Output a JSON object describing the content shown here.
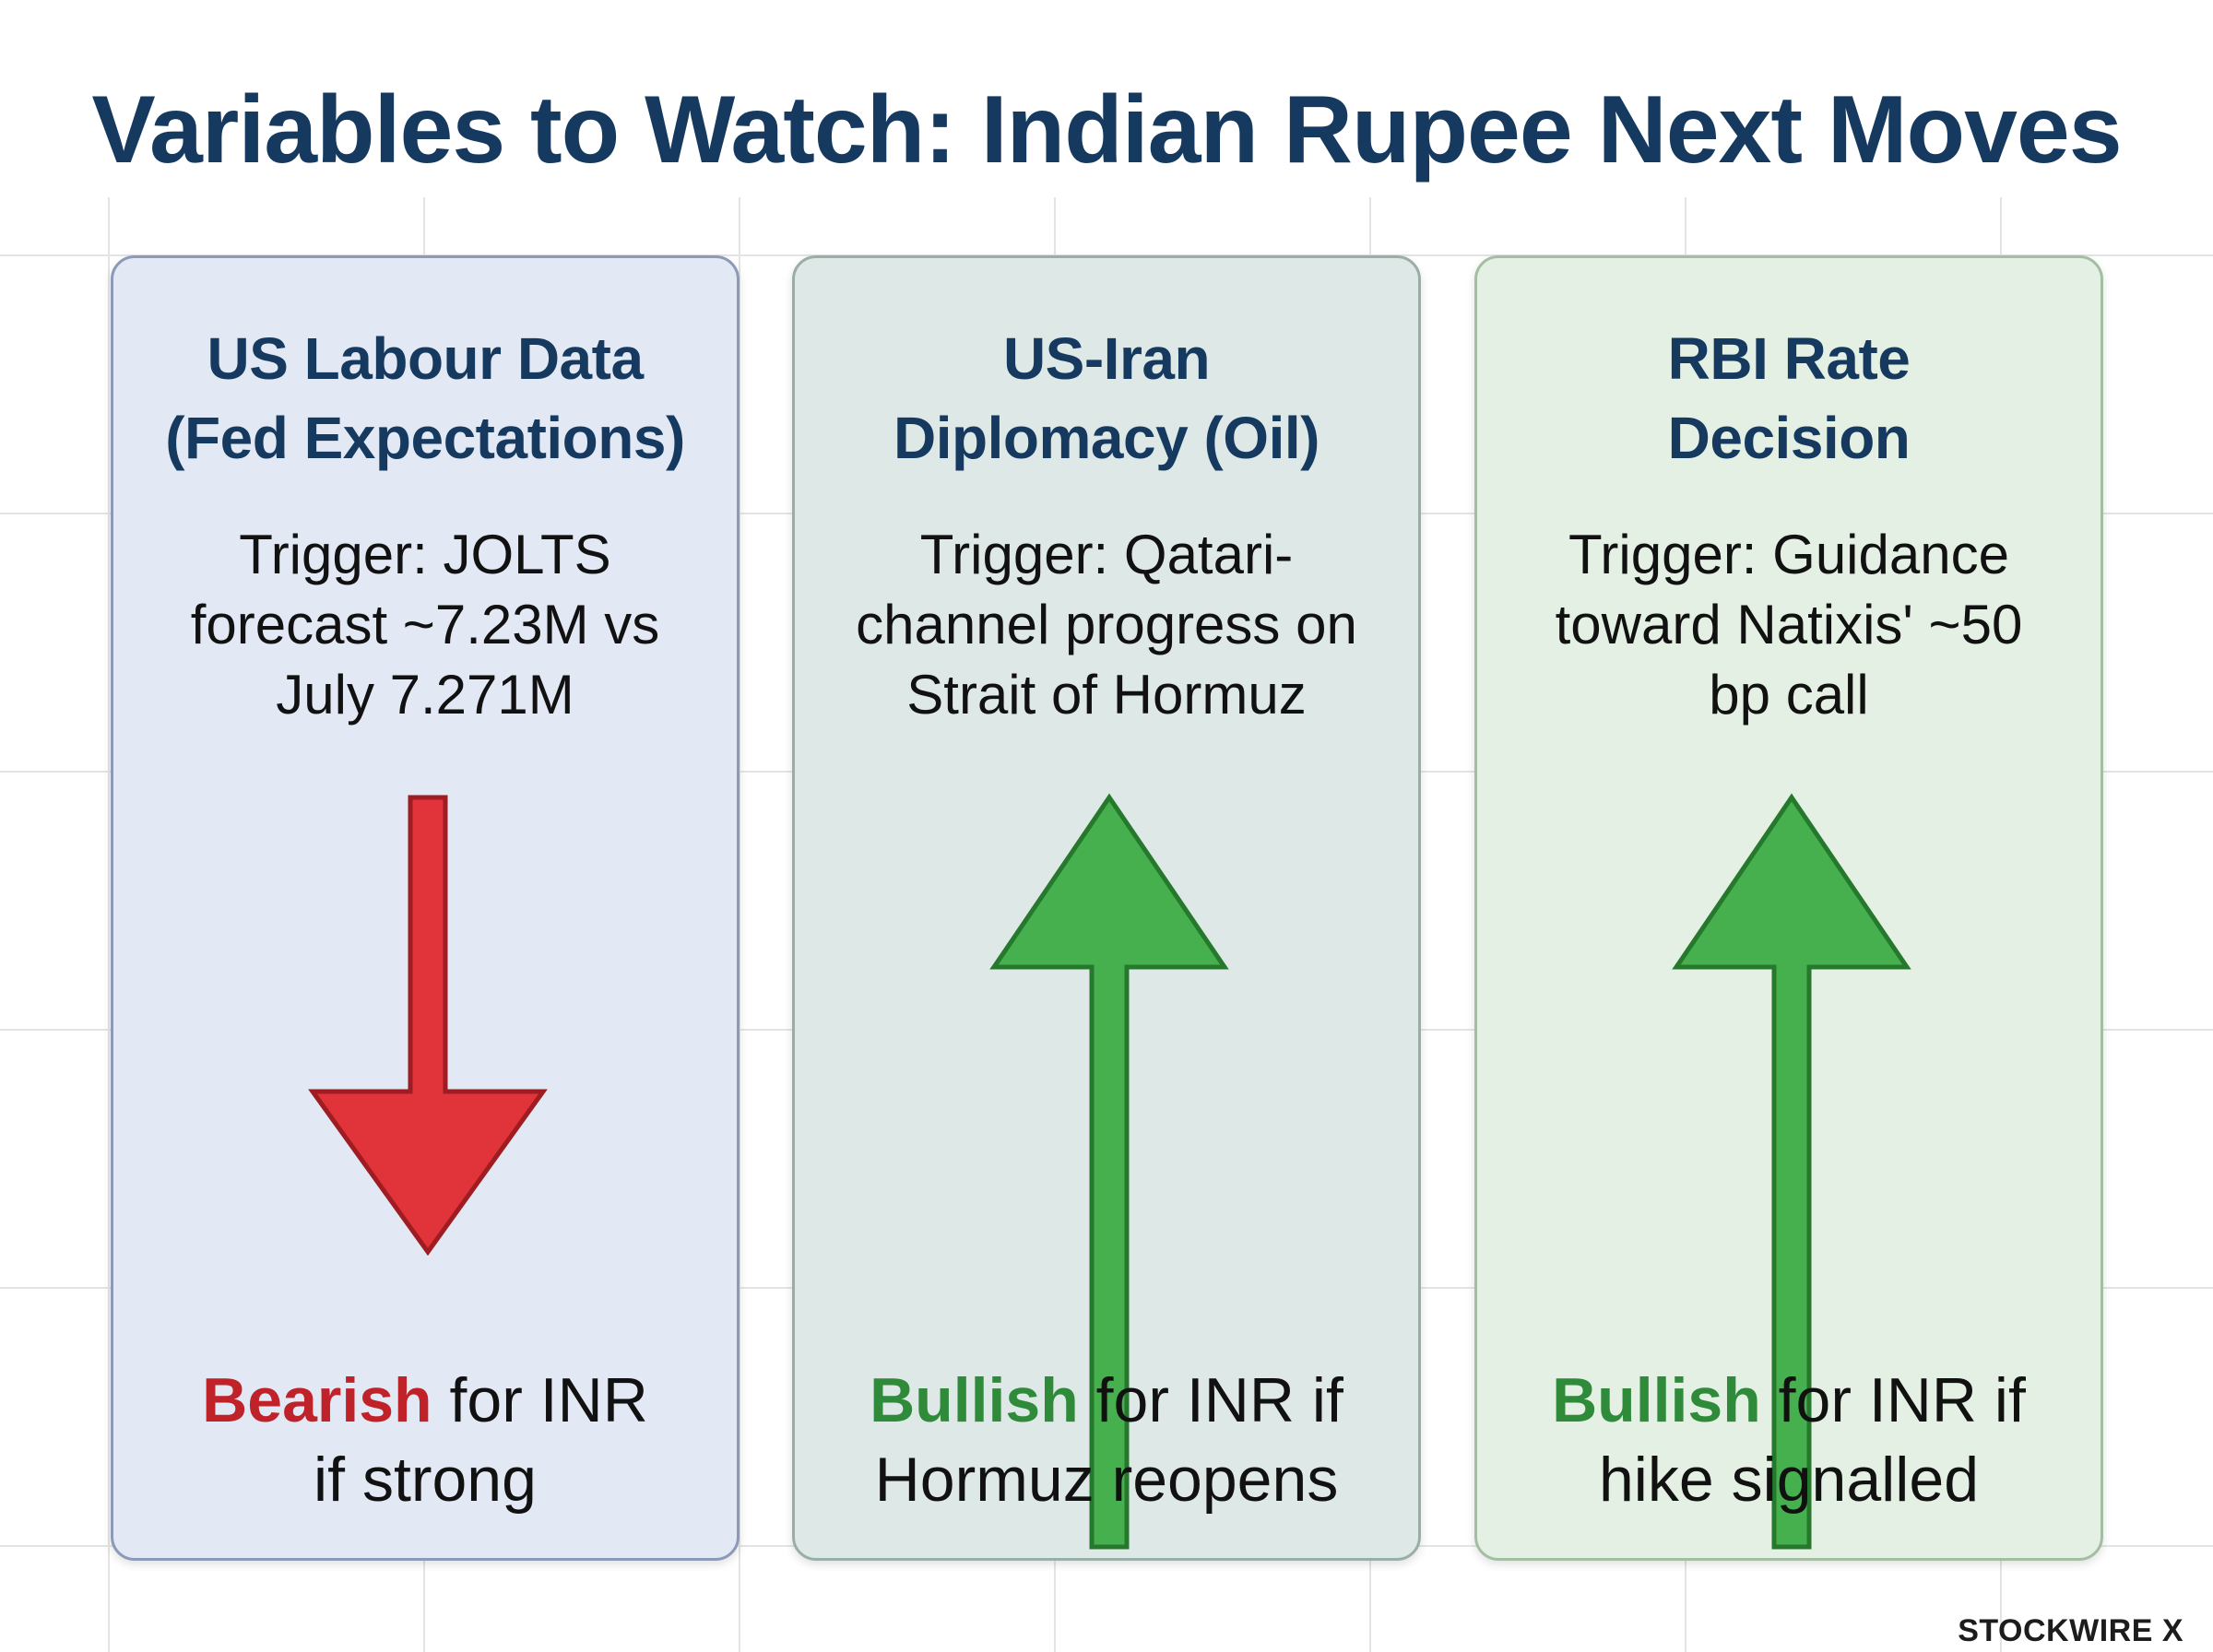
{
  "title": "Variables to Watch: Indian Rupee Next Moves",
  "cards": [
    {
      "title_lines": [
        "US Labour Data",
        "(Fed Expectations)"
      ],
      "trigger_lines": [
        "Trigger: JOLTS",
        "forecast ~7.23M vs",
        "July 7.271M"
      ],
      "direction": "down",
      "arrow_color": "#e0343a",
      "keyword": "Bearish",
      "keyword_color": "#c0222a",
      "outcome_rest_1": " for INR",
      "outcome_line_2": "if strong"
    },
    {
      "title_lines": [
        "US-Iran",
        "Diplomacy (Oil)"
      ],
      "trigger_lines": [
        "Trigger: Qatari-",
        "channel progress on",
        "Strait of Hormuz"
      ],
      "direction": "up",
      "arrow_color": "#47b04e",
      "keyword": "Bullish",
      "keyword_color": "#2f8a3a",
      "outcome_rest_1": " for INR if",
      "outcome_line_2": "Hormuz reopens"
    },
    {
      "title_lines": [
        "RBI Rate",
        "Decision"
      ],
      "trigger_lines": [
        "Trigger: Guidance",
        "toward Natixis' ~50",
        "bp call"
      ],
      "direction": "up",
      "arrow_color": "#47b04e",
      "keyword": "Bullish",
      "keyword_color": "#2f8a3a",
      "outcome_rest_1": " for INR if",
      "outcome_line_2": "hike signalled"
    }
  ],
  "logo": "STOCKWIRE X"
}
